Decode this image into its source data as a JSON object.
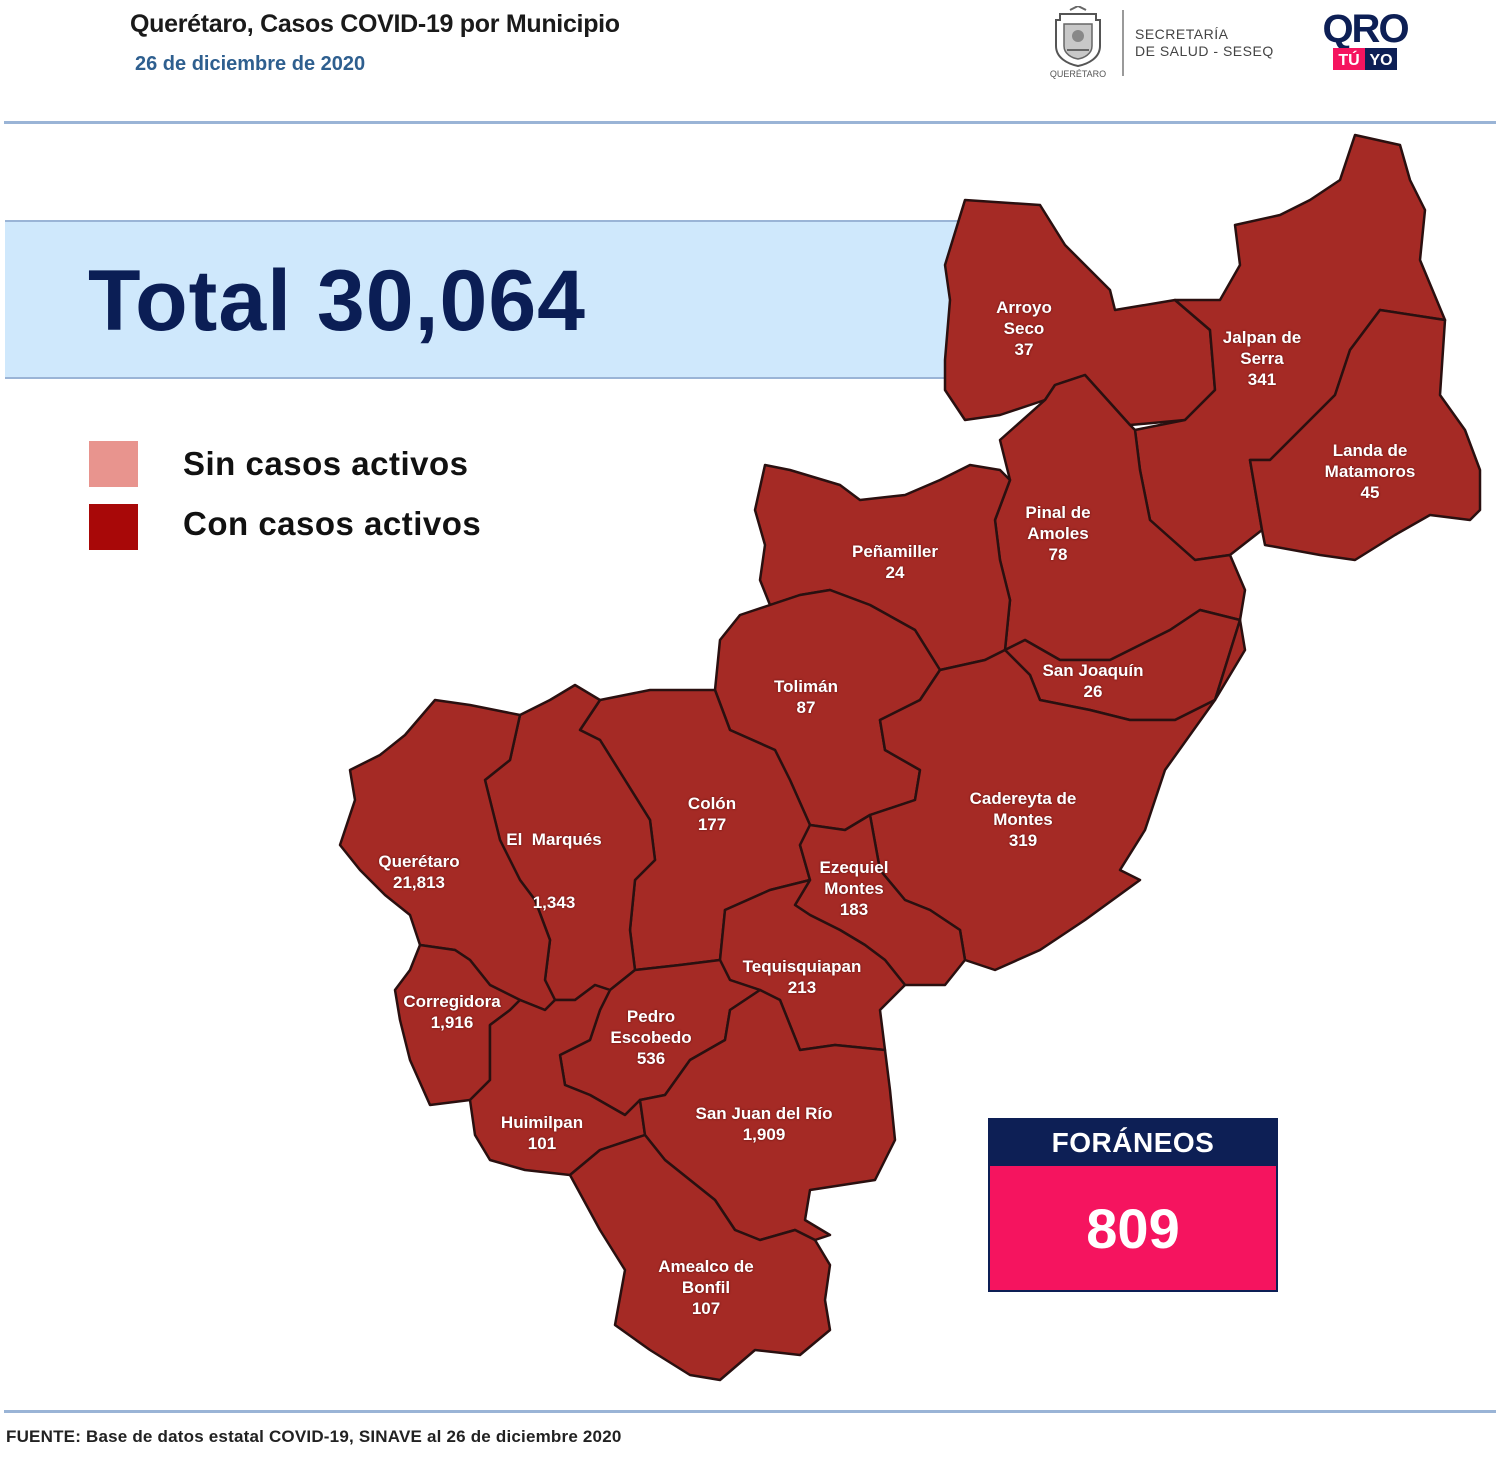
{
  "header": {
    "title": "Querétaro, Casos COVID-19 por Municipio",
    "date": "26 de diciembre de 2020"
  },
  "logos": {
    "government_seal_icon": "seal-icon",
    "secretaria_line1": "SECRETARÍA",
    "secretaria_line2": "DE SALUD - SESEQ",
    "qro": "QRO",
    "tu_yo_1": "TÚ",
    "tu_yo_2": "YO",
    "seal_caption": "QUERÉTARO"
  },
  "total": {
    "label": "Total 30,064"
  },
  "legend": {
    "items": [
      {
        "label": "Sin casos activos",
        "color": "#e8948e"
      },
      {
        "label": "Con casos activos",
        "color": "#a80808"
      }
    ]
  },
  "map": {
    "fill_color": "#a52a25",
    "border_color": "#2a1010",
    "municipalities": [
      {
        "name_lines": [
          "Arroyo",
          "Seco"
        ],
        "cases": "37"
      },
      {
        "name_lines": [
          "Jalpan de",
          "Serra"
        ],
        "cases": "341"
      },
      {
        "name_lines": [
          "Landa de",
          "Matamoros"
        ],
        "cases": "45"
      },
      {
        "name_lines": [
          "Pinal de",
          "Amoles"
        ],
        "cases": "78"
      },
      {
        "name_lines": [
          "Peñamiller"
        ],
        "cases": "24"
      },
      {
        "name_lines": [
          "San Joaquín"
        ],
        "cases": "26"
      },
      {
        "name_lines": [
          "Tolimán"
        ],
        "cases": "87"
      },
      {
        "name_lines": [
          "Cadereyta de",
          "Montes"
        ],
        "cases": "319"
      },
      {
        "name_lines": [
          "El  Marqués"
        ],
        "cases": "1,343"
      },
      {
        "name_lines": [
          "Colón"
        ],
        "cases": "177"
      },
      {
        "name_lines": [
          "Querétaro"
        ],
        "cases": "21,813"
      },
      {
        "name_lines": [
          "Ezequiel",
          "Montes"
        ],
        "cases": "183"
      },
      {
        "name_lines": [
          "Tequisquiapan"
        ],
        "cases": "213"
      },
      {
        "name_lines": [
          "Corregidora"
        ],
        "cases": "1,916"
      },
      {
        "name_lines": [
          "Pedro",
          "Escobedo"
        ],
        "cases": "536"
      },
      {
        "name_lines": [
          "Huimilpan"
        ],
        "cases": "101"
      },
      {
        "name_lines": [
          "San Juan del Río"
        ],
        "cases": "1,909"
      },
      {
        "name_lines": [
          "Amealco de",
          "Bonfil"
        ],
        "cases": "107"
      }
    ]
  },
  "foraneos": {
    "label": "FORÁNEOS",
    "value": "809",
    "header_color": "#0d1f55",
    "box_color": "#f5145f"
  },
  "source": "FUENTE:  Base de datos estatal COVID-19,  SINAVE  al 26 de diciembre 2020"
}
